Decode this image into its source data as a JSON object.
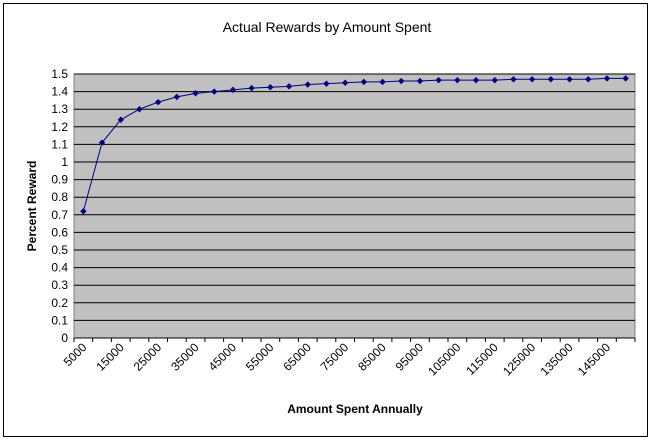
{
  "chart_data": {
    "type": "line",
    "title": "Actual Rewards by Amount Spent",
    "xlabel": "Amount Spent Annually",
    "ylabel": "Percent Reward",
    "categories": [
      5000,
      10000,
      15000,
      20000,
      25000,
      30000,
      35000,
      40000,
      45000,
      50000,
      55000,
      60000,
      65000,
      70000,
      75000,
      80000,
      85000,
      90000,
      95000,
      100000,
      105000,
      110000,
      115000,
      120000,
      125000,
      130000,
      135000,
      140000,
      145000,
      150000
    ],
    "x_tick_labels": [
      "5000",
      "15000",
      "25000",
      "35000",
      "45000",
      "55000",
      "65000",
      "75000",
      "85000",
      "95000",
      "105000",
      "115000",
      "125000",
      "135000",
      "145000"
    ],
    "series": [
      {
        "values": [
          0.72,
          1.11,
          1.24,
          1.3,
          1.34,
          1.37,
          1.39,
          1.4,
          1.41,
          1.42,
          1.425,
          1.43,
          1.44,
          1.445,
          1.45,
          1.455,
          1.455,
          1.46,
          1.46,
          1.465,
          1.465,
          1.465,
          1.465,
          1.47,
          1.47,
          1.47,
          1.47,
          1.47,
          1.475,
          1.475
        ],
        "color": "#000080"
      }
    ],
    "ylim": [
      0,
      1.5
    ],
    "y_ticks": [
      "0",
      "0.1",
      "0.2",
      "0.3",
      "0.4",
      "0.5",
      "0.6",
      "0.7",
      "0.8",
      "0.9",
      "1",
      "1.1",
      "1.2",
      "1.3",
      "1.4",
      "1.5"
    ],
    "grid": true,
    "plot_background": "#c0c0c0",
    "gridline_color": "#000000",
    "legend": "none"
  }
}
